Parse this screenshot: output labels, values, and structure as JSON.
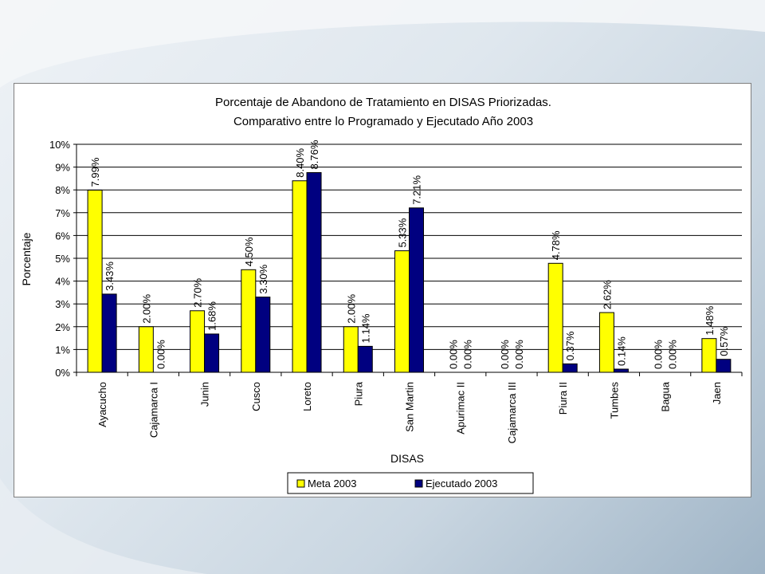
{
  "chart_data": {
    "type": "bar",
    "title": "Porcentaje de Abandono de Tratamiento en DISAS Priorizadas.",
    "subtitle": "Comparativo entre lo Programado y Ejecutado Año 2003",
    "xlabel": "DISAS",
    "ylabel": "Porcentaje",
    "ylim": [
      0,
      10
    ],
    "yticks": [
      "0%",
      "1%",
      "2%",
      "3%",
      "4%",
      "5%",
      "6%",
      "7%",
      "8%",
      "9%",
      "10%"
    ],
    "grid": true,
    "legend_position": "bottom",
    "categories": [
      "Ayacucho",
      "Cajamarca I",
      "Junin",
      "Cusco",
      "Loreto",
      "Piura",
      "San Martin",
      "Apurimac II",
      "Cajamarca III",
      "Piura II",
      "Tumbes",
      "Bagua",
      "Jaen"
    ],
    "series": [
      {
        "name": "Meta 2003",
        "color": "#ffff00",
        "values": [
          7.99,
          2.0,
          2.7,
          4.5,
          8.4,
          2.0,
          5.33,
          0.0,
          0.0,
          4.78,
          2.62,
          0.0,
          1.48
        ],
        "labels": [
          "7.99%",
          "2.00%",
          "2.70%",
          "4.50%",
          "8.40%",
          "2.00%",
          "5.33%",
          "0.00%",
          "0.00%",
          "4.78%",
          "2.62%",
          "0.00%",
          "1.48%"
        ]
      },
      {
        "name": "Ejecutado 2003",
        "color": "#000080",
        "values": [
          3.43,
          0.0,
          1.68,
          3.3,
          8.76,
          1.14,
          7.21,
          0.0,
          0.0,
          0.37,
          0.14,
          0.0,
          0.57
        ],
        "labels": [
          "3.43%",
          "0.00%",
          "1.68%",
          "3.30%",
          "8.76%",
          "1.14%",
          "7.21%",
          "0.00%",
          "0.00%",
          "0.37%",
          "0.14%",
          "0.00%",
          "0.57%"
        ]
      }
    ]
  }
}
